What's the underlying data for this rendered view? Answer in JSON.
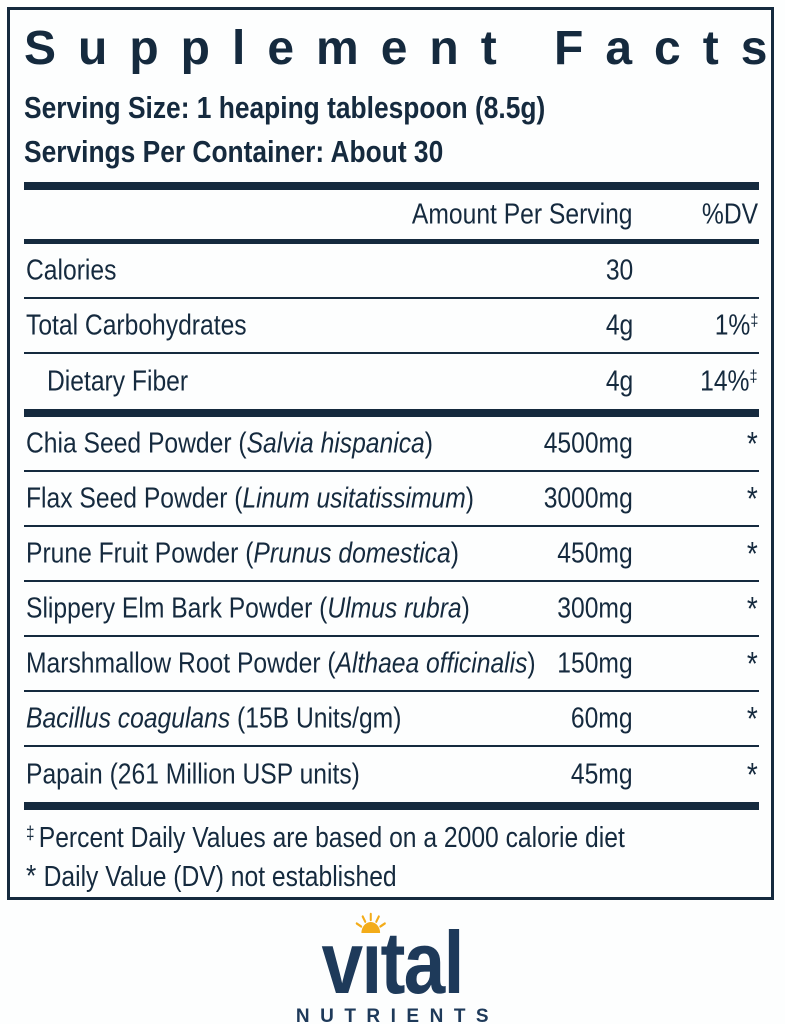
{
  "colors": {
    "navy": "#152a3e",
    "logo_navy": "#1e3a5a",
    "sun_gold": "#f3ac19",
    "background": "#fdfefe"
  },
  "panel": {
    "title": "Supplement Facts",
    "serving_size": "Serving Size: 1 heaping tablespoon (8.5g)",
    "servings_per_container": "Servings Per Container: About 30"
  },
  "table": {
    "headers": {
      "amount": "Amount Per Serving",
      "dv": "%DV"
    },
    "nutrition_rows": [
      {
        "parts": [
          {
            "text": "Calories",
            "italic": false
          }
        ],
        "indent": false,
        "amount": "30",
        "dv": "",
        "dv_sup": ""
      },
      {
        "parts": [
          {
            "text": "Total Carbohydrates",
            "italic": false
          }
        ],
        "indent": false,
        "amount": "4g",
        "dv": "1%",
        "dv_sup": "‡"
      },
      {
        "parts": [
          {
            "text": "Dietary Fiber",
            "italic": false
          }
        ],
        "indent": true,
        "amount": "4g",
        "dv": "14%",
        "dv_sup": "‡"
      }
    ],
    "ingredient_rows": [
      {
        "parts": [
          {
            "text": "Chia Seed Powder (",
            "italic": false
          },
          {
            "text": "Salvia hispanica",
            "italic": true
          },
          {
            "text": ")",
            "italic": false
          }
        ],
        "indent": false,
        "amount": "4500mg",
        "dv": "*",
        "dv_sup": ""
      },
      {
        "parts": [
          {
            "text": "Flax Seed Powder (",
            "italic": false
          },
          {
            "text": "Linum usitatissimum",
            "italic": true
          },
          {
            "text": ")",
            "italic": false
          }
        ],
        "indent": false,
        "amount": "3000mg",
        "dv": "*",
        "dv_sup": ""
      },
      {
        "parts": [
          {
            "text": "Prune Fruit Powder (",
            "italic": false
          },
          {
            "text": "Prunus domestica",
            "italic": true
          },
          {
            "text": ")",
            "italic": false
          }
        ],
        "indent": false,
        "amount": "450mg",
        "dv": "*",
        "dv_sup": ""
      },
      {
        "parts": [
          {
            "text": "Slippery Elm Bark Powder (",
            "italic": false
          },
          {
            "text": "Ulmus rubra",
            "italic": true
          },
          {
            "text": ")",
            "italic": false
          }
        ],
        "indent": false,
        "amount": "300mg",
        "dv": "*",
        "dv_sup": ""
      },
      {
        "parts": [
          {
            "text": "Marshmallow Root Powder (",
            "italic": false
          },
          {
            "text": "Althaea officinalis",
            "italic": true
          },
          {
            "text": ")",
            "italic": false
          }
        ],
        "indent": false,
        "amount": "150mg",
        "dv": "*",
        "dv_sup": ""
      },
      {
        "parts": [
          {
            "text": "Bacillus coagulans",
            "italic": true
          },
          {
            "text": " (15B Units/gm)",
            "italic": false
          }
        ],
        "indent": false,
        "amount": "60mg",
        "dv": "*",
        "dv_sup": ""
      },
      {
        "parts": [
          {
            "text": "Papain (261 Million USP units)",
            "italic": false
          }
        ],
        "indent": false,
        "amount": "45mg",
        "dv": "*",
        "dv_sup": ""
      }
    ]
  },
  "footnotes": [
    {
      "symbol": "‡",
      "text": "Percent Daily Values are based on a 2000 calorie diet"
    },
    {
      "symbol": "*",
      "text": "Daily Value (DV) not established"
    }
  ],
  "logo": {
    "word_pre": "v",
    "word_i": "ı",
    "word_post": "tal",
    "subtext": "NUTRIENTS"
  }
}
